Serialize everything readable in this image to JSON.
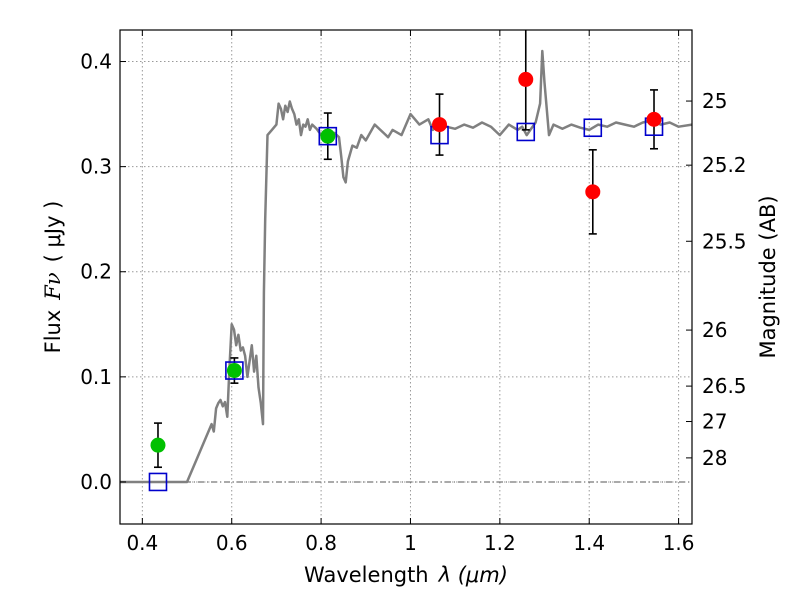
{
  "chart_data": {
    "type": "scatter",
    "xlabel_text": "Wavelength",
    "xlabel_math": "λ (μm)",
    "ylabel_text": "Flux",
    "ylabel_math": "Fν",
    "ylabel_unit": "( μJy )",
    "y2label": "Magnitude (AB)",
    "xlim": [
      0.35,
      1.63
    ],
    "ylim": [
      -0.04,
      0.43
    ],
    "x_ticks": [
      {
        "value": 0.4,
        "label": "0.4"
      },
      {
        "value": 0.6,
        "label": "0.6"
      },
      {
        "value": 0.8,
        "label": "0.8"
      },
      {
        "value": 1.0,
        "label": "1"
      },
      {
        "value": 1.2,
        "label": "1.2"
      },
      {
        "value": 1.4,
        "label": "1.4"
      },
      {
        "value": 1.6,
        "label": "1.6"
      }
    ],
    "y_ticks": [
      {
        "value": 0.0,
        "label": "0.0"
      },
      {
        "value": 0.1,
        "label": "0.1"
      },
      {
        "value": 0.2,
        "label": "0.2"
      },
      {
        "value": 0.3,
        "label": "0.3"
      },
      {
        "value": 0.4,
        "label": "0.4"
      }
    ],
    "mag_ticks": [
      {
        "flux": 0.3624,
        "label": "25"
      },
      {
        "flux": 0.3014,
        "label": "25.2"
      },
      {
        "flux": 0.229,
        "label": "25.5"
      },
      {
        "flux": 0.1445,
        "label": "26"
      },
      {
        "flux": 0.0912,
        "label": "26.5"
      },
      {
        "flux": 0.0575,
        "label": "27"
      },
      {
        "flux": 0.0229,
        "label": "28"
      }
    ],
    "grid": true,
    "series": [
      {
        "name": "model_spectrum",
        "kind": "line",
        "color": "#808080",
        "x": [
          0.35,
          0.4,
          0.45,
          0.5,
          0.52,
          0.54,
          0.555,
          0.56,
          0.565,
          0.57,
          0.575,
          0.58,
          0.585,
          0.59,
          0.595,
          0.6,
          0.605,
          0.61,
          0.615,
          0.62,
          0.625,
          0.63,
          0.635,
          0.64,
          0.645,
          0.65,
          0.655,
          0.66,
          0.665,
          0.67,
          0.672,
          0.675,
          0.68,
          0.69,
          0.7,
          0.705,
          0.71,
          0.715,
          0.72,
          0.725,
          0.73,
          0.735,
          0.74,
          0.745,
          0.75,
          0.755,
          0.76,
          0.765,
          0.77,
          0.775,
          0.78,
          0.79,
          0.8,
          0.81,
          0.82,
          0.83,
          0.84,
          0.845,
          0.85,
          0.855,
          0.86,
          0.87,
          0.88,
          0.89,
          0.9,
          0.92,
          0.94,
          0.95,
          0.96,
          0.98,
          1.0,
          1.02,
          1.04,
          1.05,
          1.06,
          1.08,
          1.1,
          1.12,
          1.14,
          1.16,
          1.18,
          1.2,
          1.22,
          1.24,
          1.25,
          1.26,
          1.27,
          1.28,
          1.29,
          1.295,
          1.3,
          1.31,
          1.32,
          1.34,
          1.36,
          1.38,
          1.4,
          1.42,
          1.44,
          1.46,
          1.48,
          1.5,
          1.52,
          1.54,
          1.56,
          1.58,
          1.6,
          1.63
        ],
        "y": [
          0.0,
          0.0,
          0.0,
          0.0,
          0.02,
          0.04,
          0.055,
          0.048,
          0.07,
          0.075,
          0.078,
          0.072,
          0.076,
          0.062,
          0.11,
          0.15,
          0.145,
          0.13,
          0.14,
          0.125,
          0.128,
          0.12,
          0.1,
          0.115,
          0.13,
          0.105,
          0.12,
          0.09,
          0.075,
          0.055,
          0.18,
          0.25,
          0.33,
          0.335,
          0.34,
          0.36,
          0.355,
          0.345,
          0.358,
          0.352,
          0.362,
          0.355,
          0.35,
          0.34,
          0.345,
          0.33,
          0.34,
          0.338,
          0.345,
          0.335,
          0.34,
          0.336,
          0.33,
          0.333,
          0.325,
          0.332,
          0.328,
          0.31,
          0.29,
          0.285,
          0.305,
          0.32,
          0.318,
          0.33,
          0.325,
          0.34,
          0.332,
          0.328,
          0.335,
          0.33,
          0.35,
          0.34,
          0.345,
          0.335,
          0.34,
          0.338,
          0.336,
          0.34,
          0.337,
          0.342,
          0.338,
          0.33,
          0.34,
          0.335,
          0.338,
          0.33,
          0.336,
          0.342,
          0.36,
          0.41,
          0.38,
          0.33,
          0.34,
          0.336,
          0.34,
          0.337,
          0.335,
          0.34,
          0.338,
          0.342,
          0.34,
          0.338,
          0.342,
          0.344,
          0.34,
          0.342,
          0.338,
          0.34
        ]
      },
      {
        "name": "model_fluxes",
        "kind": "open-square",
        "color": "#0000cc",
        "x": [
          0.435,
          0.606,
          0.815,
          1.065,
          1.258,
          1.408,
          1.545
        ],
        "y": [
          0.0,
          0.106,
          0.329,
          0.33,
          0.333,
          0.337,
          0.338
        ]
      },
      {
        "name": "observed_green",
        "kind": "filled-circle",
        "color": "#00c000",
        "x": [
          0.435,
          0.606,
          0.815
        ],
        "y": [
          0.035,
          0.106,
          0.329
        ],
        "err": [
          0.021,
          0.012,
          0.022
        ]
      },
      {
        "name": "observed_red",
        "kind": "filled-circle",
        "color": "#ff0000",
        "x": [
          1.065,
          1.258,
          1.408,
          1.545
        ],
        "y": [
          0.34,
          0.383,
          0.276,
          0.345
        ],
        "err": [
          0.029,
          0.048,
          0.04,
          0.028
        ]
      }
    ]
  },
  "styles": {
    "axis_color": "#000000",
    "grid_color": "#9a9a9a",
    "zero_line_color": "#555555"
  }
}
